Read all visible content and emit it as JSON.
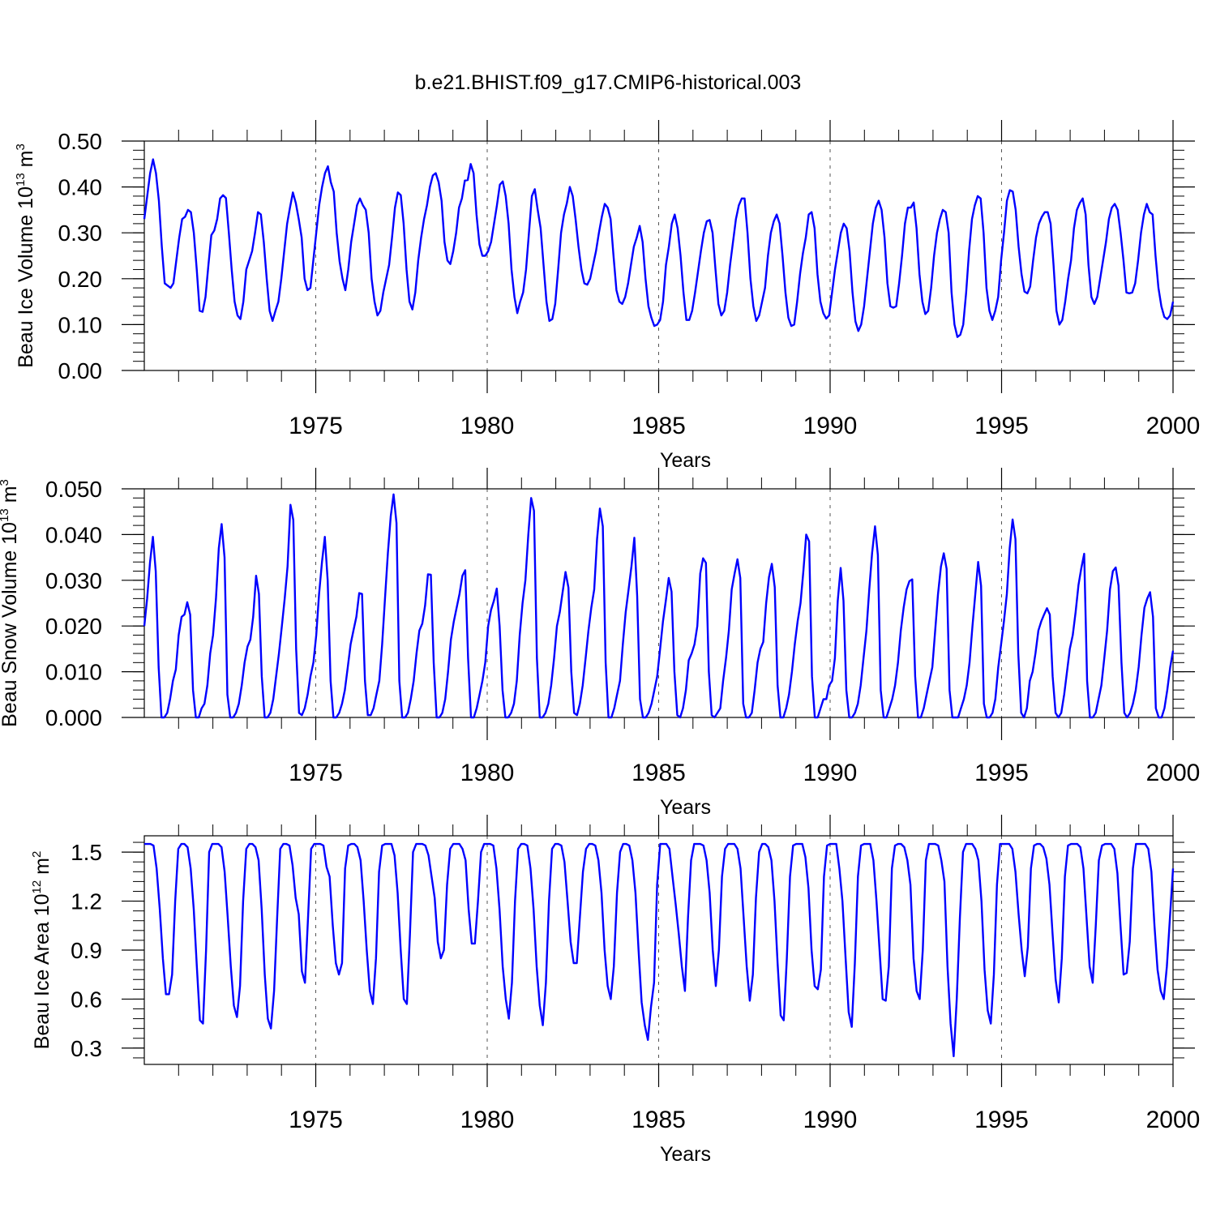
{
  "figure_title": "b.e21.BHIST.f09_g17.CMIP6-historical.003",
  "series_color": "#0000ff",
  "chart_data": [
    {
      "type": "line",
      "ylabel": {
        "base": "Beau Ice Volume 10",
        "exp": "13",
        "unit": " m",
        "unit_exp": "3"
      },
      "xlabel": "Years",
      "xlim": [
        1970,
        2000
      ],
      "ylim": [
        0,
        0.5
      ],
      "yticks": [
        0,
        0.1,
        0.2,
        0.3,
        0.4,
        0.5
      ],
      "ytick_labels": [
        "0.00",
        "0.10",
        "0.20",
        "0.30",
        "0.40",
        "0.50"
      ],
      "xticks": [
        1975,
        1980,
        1985,
        1990,
        1995,
        2000
      ],
      "xtick_labels": [
        "1975",
        "1980",
        "1985",
        "1990",
        "1995",
        "2000"
      ],
      "vgrid": [
        1975,
        1980,
        1985,
        1990,
        1995
      ],
      "values": [
        0.33,
        0.38,
        0.43,
        0.46,
        0.43,
        0.37,
        0.27,
        0.19,
        0.185,
        0.18,
        0.19,
        0.24,
        0.29,
        0.33,
        0.335,
        0.35,
        0.345,
        0.3,
        0.22,
        0.13,
        0.128,
        0.16,
        0.23,
        0.295,
        0.305,
        0.33,
        0.375,
        0.382,
        0.376,
        0.3,
        0.22,
        0.15,
        0.12,
        0.112,
        0.15,
        0.22,
        0.24,
        0.26,
        0.3,
        0.345,
        0.34,
        0.28,
        0.2,
        0.13,
        0.108,
        0.13,
        0.15,
        0.2,
        0.26,
        0.32,
        0.355,
        0.388,
        0.365,
        0.33,
        0.29,
        0.2,
        0.175,
        0.18,
        0.24,
        0.3,
        0.36,
        0.4,
        0.43,
        0.445,
        0.41,
        0.39,
        0.3,
        0.238,
        0.2,
        0.175,
        0.22,
        0.28,
        0.32,
        0.36,
        0.375,
        0.36,
        0.35,
        0.3,
        0.2,
        0.15,
        0.12,
        0.13,
        0.17,
        0.2,
        0.23,
        0.29,
        0.355,
        0.388,
        0.382,
        0.32,
        0.22,
        0.15,
        0.133,
        0.17,
        0.24,
        0.29,
        0.33,
        0.36,
        0.4,
        0.425,
        0.43,
        0.41,
        0.37,
        0.28,
        0.24,
        0.232,
        0.26,
        0.3,
        0.355,
        0.375,
        0.414,
        0.415,
        0.45,
        0.43,
        0.34,
        0.275,
        0.25,
        0.25,
        0.26,
        0.28,
        0.32,
        0.36,
        0.405,
        0.412,
        0.38,
        0.32,
        0.22,
        0.16,
        0.125,
        0.15,
        0.17,
        0.22,
        0.3,
        0.38,
        0.395,
        0.35,
        0.31,
        0.23,
        0.15,
        0.108,
        0.112,
        0.145,
        0.22,
        0.3,
        0.34,
        0.365,
        0.4,
        0.38,
        0.33,
        0.27,
        0.22,
        0.19,
        0.187,
        0.2,
        0.23,
        0.26,
        0.3,
        0.335,
        0.363,
        0.355,
        0.33,
        0.25,
        0.175,
        0.15,
        0.145,
        0.16,
        0.19,
        0.23,
        0.27,
        0.29,
        0.315,
        0.28,
        0.2,
        0.14,
        0.115,
        0.097,
        0.1,
        0.11,
        0.15,
        0.23,
        0.27,
        0.32,
        0.34,
        0.31,
        0.25,
        0.17,
        0.11,
        0.11,
        0.13,
        0.17,
        0.215,
        0.26,
        0.3,
        0.325,
        0.328,
        0.3,
        0.22,
        0.145,
        0.12,
        0.13,
        0.17,
        0.23,
        0.28,
        0.33,
        0.36,
        0.375,
        0.375,
        0.3,
        0.2,
        0.14,
        0.108,
        0.12,
        0.15,
        0.18,
        0.25,
        0.3,
        0.325,
        0.34,
        0.32,
        0.25,
        0.17,
        0.115,
        0.097,
        0.1,
        0.15,
        0.21,
        0.255,
        0.29,
        0.34,
        0.345,
        0.31,
        0.21,
        0.15,
        0.125,
        0.113,
        0.12,
        0.17,
        0.22,
        0.26,
        0.3,
        0.32,
        0.31,
        0.26,
        0.17,
        0.107,
        0.086,
        0.1,
        0.14,
        0.2,
        0.26,
        0.32,
        0.355,
        0.37,
        0.35,
        0.29,
        0.19,
        0.14,
        0.137,
        0.14,
        0.19,
        0.25,
        0.32,
        0.355,
        0.355,
        0.366,
        0.31,
        0.21,
        0.15,
        0.123,
        0.13,
        0.18,
        0.25,
        0.3,
        0.33,
        0.35,
        0.345,
        0.3,
        0.17,
        0.1,
        0.073,
        0.078,
        0.1,
        0.17,
        0.26,
        0.33,
        0.36,
        0.38,
        0.375,
        0.3,
        0.18,
        0.13,
        0.11,
        0.13,
        0.16,
        0.24,
        0.3,
        0.37,
        0.393,
        0.39,
        0.35,
        0.27,
        0.21,
        0.172,
        0.168,
        0.183,
        0.24,
        0.29,
        0.32,
        0.335,
        0.345,
        0.345,
        0.32,
        0.23,
        0.13,
        0.1,
        0.11,
        0.15,
        0.2,
        0.24,
        0.31,
        0.35,
        0.365,
        0.375,
        0.34,
        0.23,
        0.16,
        0.145,
        0.16,
        0.2,
        0.24,
        0.28,
        0.33,
        0.355,
        0.363,
        0.35,
        0.3,
        0.24,
        0.17,
        0.168,
        0.17,
        0.19,
        0.24,
        0.3,
        0.34,
        0.363,
        0.345,
        0.34,
        0.25,
        0.18,
        0.14,
        0.117,
        0.112,
        0.12,
        0.15
      ]
    },
    {
      "type": "line",
      "ylabel": {
        "base": "Beau Snow Volume 10",
        "exp": "13",
        "unit": " m",
        "unit_exp": "3"
      },
      "xlabel": "Years",
      "xlim": [
        1970,
        2000
      ],
      "ylim": [
        0,
        0.05
      ],
      "yticks": [
        0,
        0.01,
        0.02,
        0.03,
        0.04,
        0.05
      ],
      "ytick_labels": [
        "0.000",
        "0.010",
        "0.020",
        "0.030",
        "0.040",
        "0.050"
      ],
      "xticks": [
        1975,
        1980,
        1985,
        1990,
        1995,
        2000
      ],
      "xtick_labels": [
        "1975",
        "1980",
        "1985",
        "1990",
        "1995",
        "2000"
      ],
      "vgrid": [
        1975,
        1980,
        1985,
        1990,
        1995
      ],
      "values": [
        0.02,
        0.026,
        0.034,
        0.0395,
        0.032,
        0.011,
        0,
        0,
        0.001,
        0.004,
        0.008,
        0.0105,
        0.018,
        0.022,
        0.0225,
        0.0252,
        0.0225,
        0.006,
        0,
        0,
        0.002,
        0.003,
        0.007,
        0.014,
        0.018,
        0.026,
        0.037,
        0.0423,
        0.035,
        0.005,
        0,
        0,
        0.001,
        0.003,
        0.007,
        0.012,
        0.0155,
        0.017,
        0.022,
        0.031,
        0.027,
        0.009,
        0,
        0,
        0.001,
        0.004,
        0.009,
        0.014,
        0.02,
        0.026,
        0.033,
        0.0465,
        0.0432,
        0.015,
        0.001,
        0.0005,
        0.002,
        0.005,
        0.009,
        0.012,
        0.018,
        0.027,
        0.034,
        0.0395,
        0.03,
        0.008,
        0,
        0,
        0.001,
        0.003,
        0.006,
        0.011,
        0.016,
        0.019,
        0.022,
        0.0272,
        0.027,
        0.008,
        0.0005,
        0.0005,
        0.002,
        0.005,
        0.008,
        0.016,
        0.026,
        0.036,
        0.044,
        0.0488,
        0.0425,
        0.008,
        0,
        0,
        0.001,
        0.004,
        0.008,
        0.014,
        0.019,
        0.0205,
        0.0245,
        0.0313,
        0.0312,
        0.012,
        0,
        0,
        0.001,
        0.004,
        0.01,
        0.017,
        0.021,
        0.024,
        0.027,
        0.031,
        0.0322,
        0.013,
        0,
        0,
        0.002,
        0.005,
        0.008,
        0.012,
        0.02,
        0.0235,
        0.0255,
        0.0282,
        0.02,
        0.006,
        0,
        0,
        0.001,
        0.003,
        0.008,
        0.018,
        0.025,
        0.03,
        0.04,
        0.048,
        0.0452,
        0.013,
        0,
        0,
        0.001,
        0.003,
        0.007,
        0.013,
        0.02,
        0.023,
        0.0275,
        0.0318,
        0.0284,
        0.01,
        0.001,
        0.0005,
        0.003,
        0.007,
        0.013,
        0.019,
        0.024,
        0.028,
        0.039,
        0.0457,
        0.0418,
        0.012,
        0,
        0,
        0.002,
        0.005,
        0.008,
        0.016,
        0.023,
        0.028,
        0.033,
        0.0393,
        0.0265,
        0.004,
        0,
        0,
        0.001,
        0.003,
        0.006,
        0.009,
        0.015,
        0.021,
        0.0255,
        0.0305,
        0.0275,
        0.01,
        0.0005,
        0,
        0.002,
        0.006,
        0.0125,
        0.014,
        0.016,
        0.02,
        0.0315,
        0.0348,
        0.0338,
        0.01,
        0.0005,
        0,
        0.001,
        0.002,
        0.008,
        0.013,
        0.019,
        0.028,
        0.0315,
        0.0346,
        0.0305,
        0.003,
        0,
        0,
        0.001,
        0.006,
        0.012,
        0.015,
        0.0165,
        0.025,
        0.0307,
        0.0336,
        0.0285,
        0.007,
        0,
        0,
        0.002,
        0.005,
        0.01,
        0.016,
        0.021,
        0.025,
        0.032,
        0.04,
        0.0385,
        0.009,
        0,
        0,
        0.002,
        0.004,
        0.004,
        0.007,
        0.008,
        0.013,
        0.0255,
        0.0327,
        0.0255,
        0.006,
        0,
        0,
        0.001,
        0.003,
        0.007,
        0.013,
        0.019,
        0.028,
        0.036,
        0.0418,
        0.0355,
        0.006,
        0,
        0,
        0.002,
        0.004,
        0.007,
        0.012,
        0.019,
        0.024,
        0.028,
        0.0298,
        0.0302,
        0.009,
        0,
        0,
        0.002,
        0.005,
        0.008,
        0.011,
        0.019,
        0.027,
        0.033,
        0.0359,
        0.0325,
        0.006,
        0,
        0,
        0,
        0.002,
        0.004,
        0.007,
        0.012,
        0.02,
        0.027,
        0.034,
        0.0288,
        0.003,
        0,
        0,
        0.001,
        0.004,
        0.011,
        0.016,
        0.021,
        0.027,
        0.037,
        0.0433,
        0.039,
        0.014,
        0.001,
        0,
        0.002,
        0.008,
        0.01,
        0.014,
        0.019,
        0.021,
        0.0225,
        0.0239,
        0.0225,
        0.009,
        0.001,
        0,
        0.001,
        0.005,
        0.01,
        0.015,
        0.018,
        0.023,
        0.029,
        0.0327,
        0.0358,
        0.008,
        0,
        0,
        0.001,
        0.004,
        0.007,
        0.013,
        0.019,
        0.028,
        0.032,
        0.0328,
        0.0288,
        0.012,
        0.001,
        0,
        0.001,
        0.003,
        0.006,
        0.011,
        0.018,
        0.024,
        0.026,
        0.0274,
        0.022,
        0.002,
        0,
        0,
        0.002,
        0.006,
        0.011,
        0.0146
      ]
    },
    {
      "type": "line",
      "ylabel": {
        "base": "Beau Ice Area 10",
        "exp": "12",
        "unit": " m",
        "unit_exp": "2"
      },
      "xlabel": "Years",
      "xlim": [
        1970,
        2000
      ],
      "ylim": [
        0.2,
        1.6
      ],
      "yticks": [
        0.3,
        0.6,
        0.9,
        1.2,
        1.5
      ],
      "ytick_labels": [
        "0.3",
        "0.6",
        "0.9",
        "1.2",
        "1.5"
      ],
      "xticks": [
        1975,
        1980,
        1985,
        1990,
        1995,
        2000
      ],
      "xtick_labels": [
        "1975",
        "1980",
        "1985",
        "1990",
        "1995",
        "2000"
      ],
      "vgrid": [
        1975,
        1980,
        1985,
        1990,
        1995
      ],
      "values": [
        1.55,
        1.55,
        1.55,
        1.54,
        1.4,
        1.15,
        0.85,
        0.63,
        0.63,
        0.75,
        1.2,
        1.52,
        1.55,
        1.55,
        1.53,
        1.4,
        1.15,
        0.8,
        0.47,
        0.45,
        0.9,
        1.5,
        1.55,
        1.55,
        1.55,
        1.53,
        1.38,
        1.1,
        0.8,
        0.56,
        0.49,
        0.68,
        1.2,
        1.52,
        1.55,
        1.55,
        1.53,
        1.45,
        1.15,
        0.75,
        0.48,
        0.42,
        0.65,
        1.1,
        1.52,
        1.55,
        1.55,
        1.54,
        1.42,
        1.22,
        1.12,
        0.77,
        0.7,
        1.1,
        1.52,
        1.55,
        1.55,
        1.55,
        1.54,
        1.41,
        1.35,
        1.05,
        0.82,
        0.75,
        0.82,
        1.4,
        1.54,
        1.55,
        1.55,
        1.53,
        1.45,
        1.2,
        0.9,
        0.65,
        0.57,
        0.85,
        1.38,
        1.54,
        1.55,
        1.55,
        1.55,
        1.48,
        1.25,
        0.9,
        0.6,
        0.57,
        1.0,
        1.5,
        1.55,
        1.55,
        1.55,
        1.54,
        1.48,
        1.35,
        1.22,
        0.95,
        0.85,
        0.9,
        1.3,
        1.52,
        1.55,
        1.55,
        1.55,
        1.52,
        1.45,
        1.15,
        0.94,
        0.94,
        1.2,
        1.5,
        1.55,
        1.55,
        1.55,
        1.54,
        1.4,
        1.15,
        0.8,
        0.6,
        0.48,
        0.7,
        1.2,
        1.52,
        1.55,
        1.55,
        1.54,
        1.4,
        1.15,
        0.8,
        0.56,
        0.44,
        0.7,
        1.2,
        1.52,
        1.55,
        1.55,
        1.54,
        1.44,
        1.2,
        0.95,
        0.82,
        0.82,
        1.1,
        1.38,
        1.52,
        1.55,
        1.55,
        1.54,
        1.45,
        1.25,
        0.9,
        0.68,
        0.6,
        0.8,
        1.25,
        1.5,
        1.55,
        1.55,
        1.54,
        1.45,
        1.25,
        0.9,
        0.58,
        0.44,
        0.35,
        0.55,
        0.7,
        1.3,
        1.55,
        1.55,
        1.55,
        1.52,
        1.35,
        1.18,
        1.0,
        0.8,
        0.65,
        1.1,
        1.45,
        1.55,
        1.55,
        1.55,
        1.54,
        1.45,
        1.25,
        0.9,
        0.68,
        0.9,
        1.35,
        1.52,
        1.55,
        1.55,
        1.55,
        1.52,
        1.4,
        1.1,
        0.8,
        0.59,
        0.75,
        1.22,
        1.5,
        1.55,
        1.55,
        1.53,
        1.45,
        1.2,
        0.82,
        0.5,
        0.47,
        0.85,
        1.35,
        1.54,
        1.55,
        1.55,
        1.55,
        1.47,
        1.28,
        0.9,
        0.68,
        0.66,
        0.78,
        1.35,
        1.54,
        1.55,
        1.55,
        1.55,
        1.4,
        1.2,
        0.85,
        0.52,
        0.43,
        0.82,
        1.35,
        1.54,
        1.55,
        1.55,
        1.55,
        1.45,
        1.2,
        0.9,
        0.6,
        0.59,
        0.8,
        1.4,
        1.54,
        1.55,
        1.55,
        1.53,
        1.45,
        1.3,
        0.85,
        0.65,
        0.6,
        0.9,
        1.45,
        1.55,
        1.55,
        1.55,
        1.54,
        1.45,
        1.32,
        0.8,
        0.45,
        0.25,
        0.6,
        1.1,
        1.5,
        1.55,
        1.55,
        1.55,
        1.52,
        1.45,
        1.2,
        0.78,
        0.53,
        0.45,
        0.75,
        1.3,
        1.55,
        1.55,
        1.55,
        1.55,
        1.52,
        1.38,
        1.12,
        0.9,
        0.74,
        0.92,
        1.4,
        1.54,
        1.55,
        1.55,
        1.53,
        1.46,
        1.3,
        1.0,
        0.72,
        0.58,
        0.85,
        1.35,
        1.54,
        1.55,
        1.55,
        1.55,
        1.53,
        1.4,
        1.1,
        0.8,
        0.7,
        1.05,
        1.45,
        1.54,
        1.55,
        1.55,
        1.55,
        1.52,
        1.37,
        1.05,
        0.75,
        0.76,
        0.95,
        1.4,
        1.55,
        1.55,
        1.55,
        1.55,
        1.52,
        1.38,
        1.05,
        0.78,
        0.65,
        0.6,
        0.8,
        1.1,
        1.4
      ]
    }
  ]
}
